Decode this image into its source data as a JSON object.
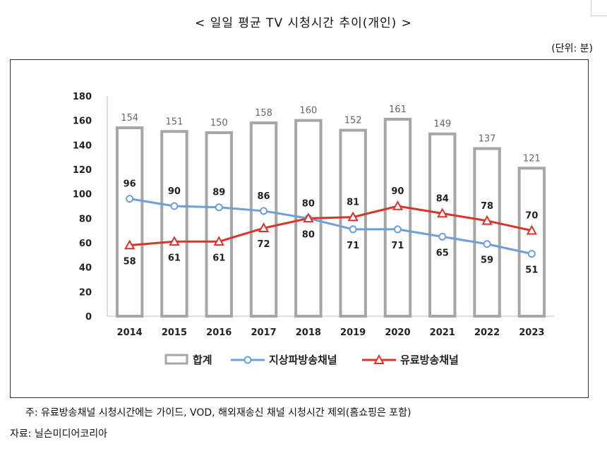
{
  "title": "< 일일 평균 TV 시청시간 추이(개인) >",
  "unit": "(단위: 분)",
  "note": "주: 유료방송채널 시청시간에는 가이드, VOD, 해외재송신 채널 시청시간 제외(홈쇼핑은 포함)",
  "source": "자료: 닐슨미디어코리아",
  "chart_data": {
    "type": "bar",
    "categories": [
      "2014",
      "2015",
      "2016",
      "2017",
      "2018",
      "2019",
      "2020",
      "2021",
      "2022",
      "2023"
    ],
    "ylim": [
      0,
      180
    ],
    "yticks": [
      "0",
      "20",
      "40",
      "60",
      "80",
      "100",
      "120",
      "140",
      "160",
      "180"
    ],
    "grid": false,
    "legend_position": "bottom",
    "series": [
      {
        "name": "합계",
        "type": "bar",
        "color": "#a6a6a6",
        "values": [
          154,
          151,
          150,
          158,
          160,
          152,
          161,
          149,
          137,
          121
        ]
      },
      {
        "name": "지상파방송채널",
        "type": "line",
        "color": "#6f9fd8",
        "values": [
          96,
          90,
          89,
          86,
          80,
          71,
          71,
          65,
          59,
          51
        ]
      },
      {
        "name": "유료방송채널",
        "type": "line",
        "color": "#d9342b",
        "values": [
          58,
          61,
          61,
          72,
          80,
          81,
          90,
          84,
          78,
          70
        ]
      }
    ]
  }
}
